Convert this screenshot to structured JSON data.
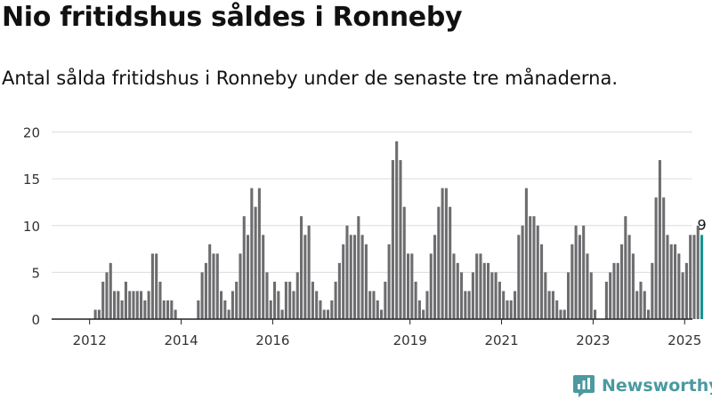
{
  "title": "Nio fritidshus såldes i Ronneby",
  "subtitle": "Antal sålda fritidshus i Ronneby under de senaste tre månaderna.",
  "brand": {
    "name": "Newsworthy",
    "icon": "newsworthy-logo-icon",
    "color": "#4a9aa0"
  },
  "chart_data": {
    "type": "bar",
    "title": "",
    "xlabel": "",
    "ylabel": "",
    "ylim": [
      0,
      20
    ],
    "yticks": [
      0,
      5,
      10,
      15,
      20
    ],
    "xlim": [
      2011.67,
      2025.67
    ],
    "x_tick_labels": [
      "2012",
      "2014",
      "2016",
      "2019",
      "2021",
      "2023",
      "2025"
    ],
    "grid": true,
    "legend": "none",
    "colors": {
      "bar": "#6d6d70",
      "highlight": "#17948f",
      "grid": "#dcdcdc",
      "axis": "#222222"
    },
    "x_start": "2012-01",
    "frequency": "monthly",
    "values": [
      0,
      0,
      0,
      0,
      0,
      0,
      0,
      1,
      1,
      4,
      5,
      6,
      3,
      3,
      2,
      4,
      3,
      3,
      3,
      3,
      2,
      3,
      7,
      7,
      4,
      2,
      2,
      2,
      1,
      0,
      0,
      0,
      0,
      0,
      2,
      5,
      6,
      8,
      7,
      7,
      3,
      2,
      1,
      3,
      4,
      7,
      11,
      9,
      14,
      12,
      14,
      9,
      5,
      2,
      4,
      3,
      1,
      4,
      4,
      3,
      5,
      11,
      9,
      10,
      4,
      3,
      2,
      1,
      1,
      2,
      4,
      6,
      8,
      10,
      9,
      9,
      11,
      9,
      8,
      3,
      3,
      2,
      1,
      4,
      8,
      17,
      19,
      17,
      12,
      7,
      7,
      4,
      2,
      1,
      3,
      7,
      9,
      12,
      14,
      14,
      12,
      7,
      6,
      5,
      3,
      3,
      5,
      7,
      7,
      6,
      6,
      5,
      5,
      4,
      3,
      2,
      2,
      3,
      9,
      10,
      14,
      11,
      11,
      10,
      8,
      5,
      3,
      3,
      2,
      1,
      1,
      5,
      8,
      10,
      9,
      10,
      7,
      5,
      1,
      0,
      0,
      4,
      5,
      6,
      6,
      8,
      11,
      9,
      7,
      3,
      4,
      3,
      1,
      6,
      13,
      17,
      13,
      9,
      8,
      8,
      7,
      5,
      6,
      9,
      9,
      10,
      9
    ],
    "highlight_last": true,
    "last_value_label": "9"
  }
}
